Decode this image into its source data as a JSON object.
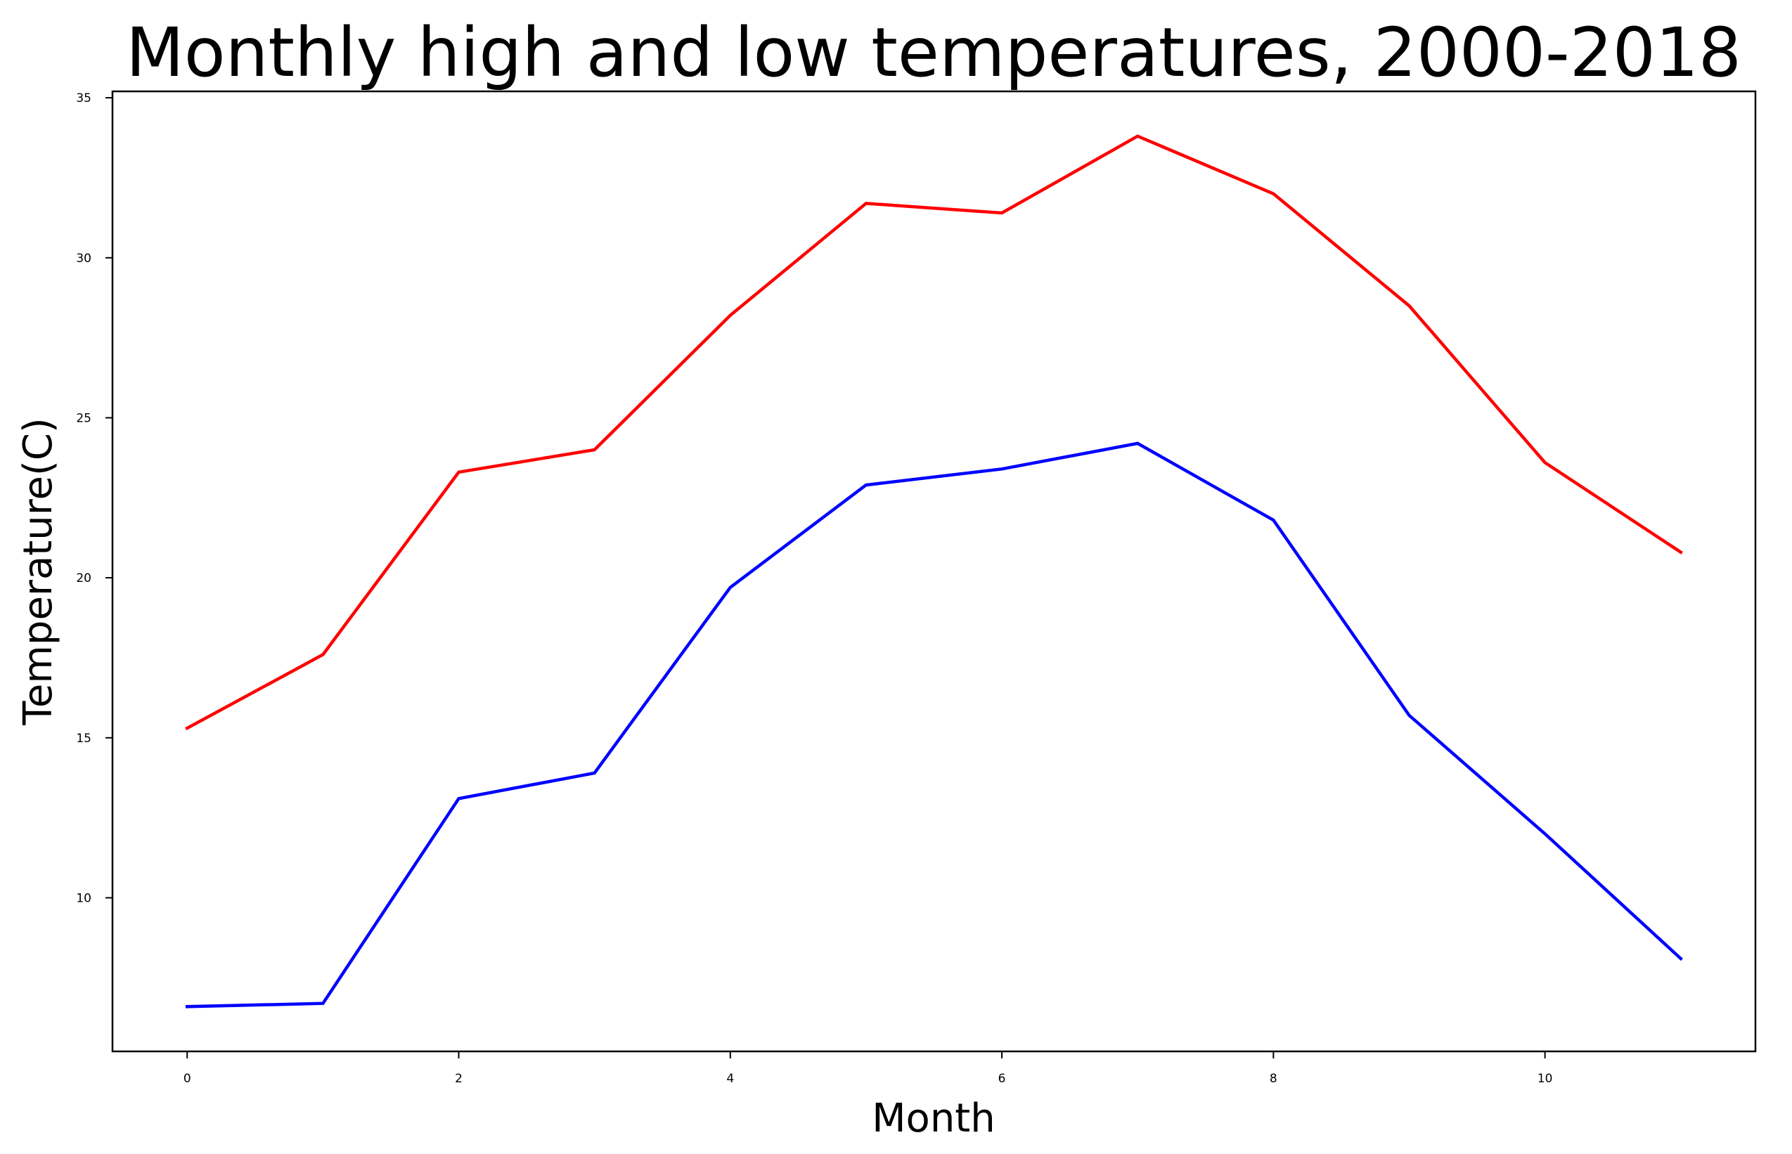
{
  "chart_data": {
    "type": "line",
    "title": "Monthly high and low temperatures, 2000-2018",
    "xlabel": "Month",
    "ylabel": "Temperature(C)",
    "x": [
      0,
      1,
      2,
      3,
      4,
      5,
      6,
      7,
      8,
      9,
      10,
      11
    ],
    "xlim": [
      -0.55,
      11.55
    ],
    "ylim": [
      5.2,
      35.2
    ],
    "xticks": [
      0,
      2,
      4,
      6,
      8,
      10
    ],
    "yticks": [
      10,
      15,
      20,
      25,
      30,
      35
    ],
    "grid": false,
    "legend": "none",
    "series": [
      {
        "color": "#ff0000",
        "values": [
          15.3,
          17.6,
          23.3,
          24.0,
          28.2,
          31.7,
          31.4,
          33.8,
          32.0,
          28.5,
          23.6,
          20.8
        ]
      },
      {
        "color": "#0000ff",
        "values": [
          6.6,
          6.7,
          13.1,
          13.9,
          19.7,
          22.9,
          23.4,
          24.2,
          21.8,
          15.7,
          12.0,
          8.1
        ]
      }
    ]
  }
}
